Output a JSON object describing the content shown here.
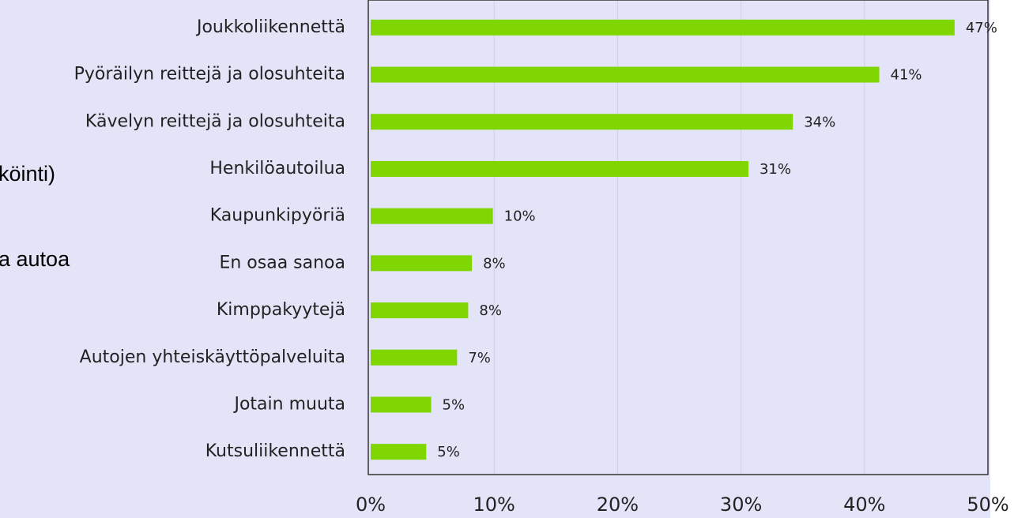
{
  "chart_data": {
    "type": "bar",
    "orientation": "horizontal",
    "categories": [
      "Joukkoliikennettä",
      "Pyöräilyn reittejä ja olosuhteita",
      "Kävelyn reittejä ja olosuhteita",
      "Henkilöautoilua",
      "Kaupunkipyöriä",
      "En osaa sanoa",
      "Kimppakyytejä",
      "Autojen yhteiskäyttöpalveluita",
      "Jotain muuta",
      "Kutsuliikennettä"
    ],
    "values": [
      47.3,
      41.2,
      34.2,
      30.6,
      9.9,
      8.2,
      7.9,
      7.0,
      4.9,
      4.5
    ],
    "value_labels": [
      "47%",
      "41%",
      "34%",
      "31%",
      "10%",
      "8%",
      "8%",
      "7%",
      "5%",
      "5%"
    ],
    "color": "#7fd600",
    "xlim": [
      0,
      50
    ],
    "xticks": [
      {
        "value": 0,
        "label": "0%"
      },
      {
        "value": 10,
        "label": "10%"
      },
      {
        "value": 20,
        "label": "20%"
      },
      {
        "value": 30,
        "label": "30%"
      },
      {
        "value": 40,
        "label": "40%"
      },
      {
        "value": 50,
        "label": "50%"
      }
    ],
    "grid": true,
    "annotations": [
      "köinti)",
      "a autoa"
    ]
  }
}
